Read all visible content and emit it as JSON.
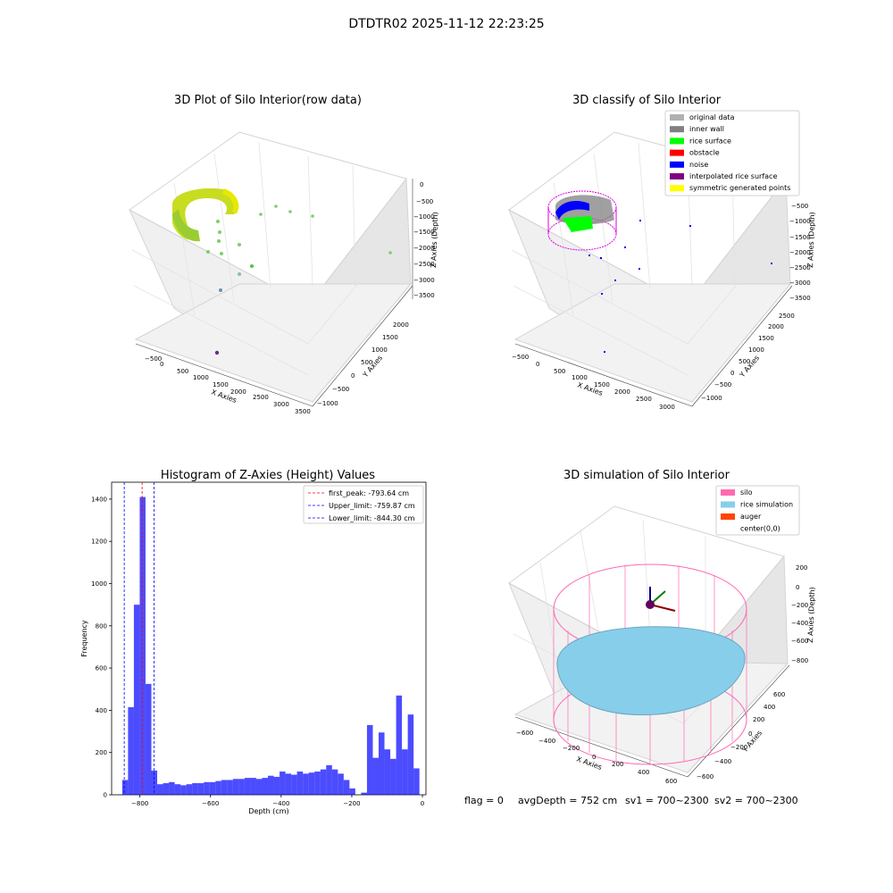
{
  "suptitle": "DTDTR02 2025-11-12 22:23:25",
  "status_line": {
    "flag": "flag = 0",
    "avg_depth": "avgDepth = 752 cm",
    "sv1": "sv1 = 700~2300",
    "sv2": "sv2 = 700~2300"
  },
  "chart_data": [
    {
      "type": "scatter",
      "projection": "3d",
      "title": "3D Plot of Silo Interior(row data)",
      "xlabel": "X Axies",
      "ylabel": "Y Axies",
      "zlabel": "Z Axies (Depth)",
      "xticks": [
        "−500",
        "0",
        "500",
        "1000",
        "1500",
        "2000",
        "2500",
        "3000",
        "3500"
      ],
      "yticks": [
        "−1000",
        "−500",
        "0",
        "500",
        "1000",
        "1500",
        "2000"
      ],
      "zticks": [
        "0",
        "−500",
        "−1000",
        "−1500",
        "−2000",
        "−2500",
        "−3000",
        "−3500"
      ],
      "grid": true
    },
    {
      "type": "scatter",
      "projection": "3d",
      "title": "3D classify of Silo Interior",
      "xlabel": "X Axies",
      "ylabel": "Y Axies",
      "zlabel": "Z Axies (Depth)",
      "xticks": [
        "−500",
        "0",
        "500",
        "1000",
        "1500",
        "2000",
        "2500",
        "3000"
      ],
      "yticks": [
        "−1000",
        "−500",
        "0",
        "500",
        "1000",
        "1500",
        "2000",
        "2500"
      ],
      "zticks": [
        "0",
        "−500",
        "−1000",
        "−1500",
        "−2000",
        "−2500",
        "−3000",
        "−3500"
      ],
      "legend_position": "top-right",
      "legend": [
        {
          "label": "original data",
          "color": "#b0b0b0"
        },
        {
          "label": "inner wall",
          "color": "#808080"
        },
        {
          "label": "rice surface",
          "color": "#00ff00"
        },
        {
          "label": "obstacle",
          "color": "#ff0000"
        },
        {
          "label": "noise",
          "color": "#0000ff"
        },
        {
          "label": "interpolated rice surface",
          "color": "#800080"
        },
        {
          "label": "symmetric generated points",
          "color": "#ffff00"
        }
      ],
      "grid": true
    },
    {
      "type": "bar",
      "title": "Histogram of Z-Axies (Height) Values",
      "xlabel": "Depth (cm)",
      "ylabel": "Frequency",
      "xlim": [
        -880,
        10
      ],
      "ylim": [
        0,
        1480
      ],
      "xticks": [
        -800,
        -600,
        -400,
        -200,
        0
      ],
      "xtick_labels": [
        "−800",
        "−600",
        "−400",
        "−200",
        "0"
      ],
      "yticks": [
        0,
        200,
        400,
        600,
        800,
        1000,
        1200,
        1400
      ],
      "bar_color": "#0000ff",
      "bin_start": -850,
      "bin_width": 16.5,
      "values": [
        70,
        415,
        900,
        1410,
        525,
        115,
        50,
        55,
        60,
        50,
        45,
        50,
        55,
        55,
        60,
        60,
        65,
        70,
        70,
        75,
        75,
        80,
        80,
        75,
        80,
        90,
        85,
        110,
        100,
        95,
        110,
        100,
        105,
        110,
        120,
        140,
        120,
        100,
        70,
        30,
        0,
        10,
        330,
        175,
        295,
        215,
        170,
        470,
        215,
        380,
        125
      ],
      "vlines": [
        {
          "x": -793.64,
          "label": "first_peak: -793.64 cm",
          "color": "#ff0000"
        },
        {
          "x": -759.87,
          "label": "Upper_limit: -759.87 cm",
          "color": "#0000ff"
        },
        {
          "x": -844.3,
          "label": "Lower_limit: -844.30 cm",
          "color": "#0000ff"
        }
      ],
      "legend_position": "top-right"
    },
    {
      "type": "surface",
      "projection": "3d",
      "title": "3D simulation of Silo Interior",
      "xlabel": "X Axies",
      "ylabel": "Y Axies",
      "zlabel": "Z Axies (Depth)",
      "xticks": [
        "−600",
        "−400",
        "−200",
        "0",
        "200",
        "400",
        "600"
      ],
      "yticks": [
        "−600",
        "−400",
        "−200",
        "0",
        "200",
        "400",
        "600"
      ],
      "zticks": [
        "200",
        "0",
        "−200",
        "−400",
        "−600",
        "−800"
      ],
      "legend_position": "top-right",
      "legend": [
        {
          "label": "silo",
          "color": "#ff69b4"
        },
        {
          "label": "rice simulation",
          "color": "#87ceeb"
        },
        {
          "label": "auger",
          "color": "#ff4500"
        },
        {
          "label": "center(0,0)",
          "color": "none"
        }
      ],
      "grid": true
    }
  ]
}
